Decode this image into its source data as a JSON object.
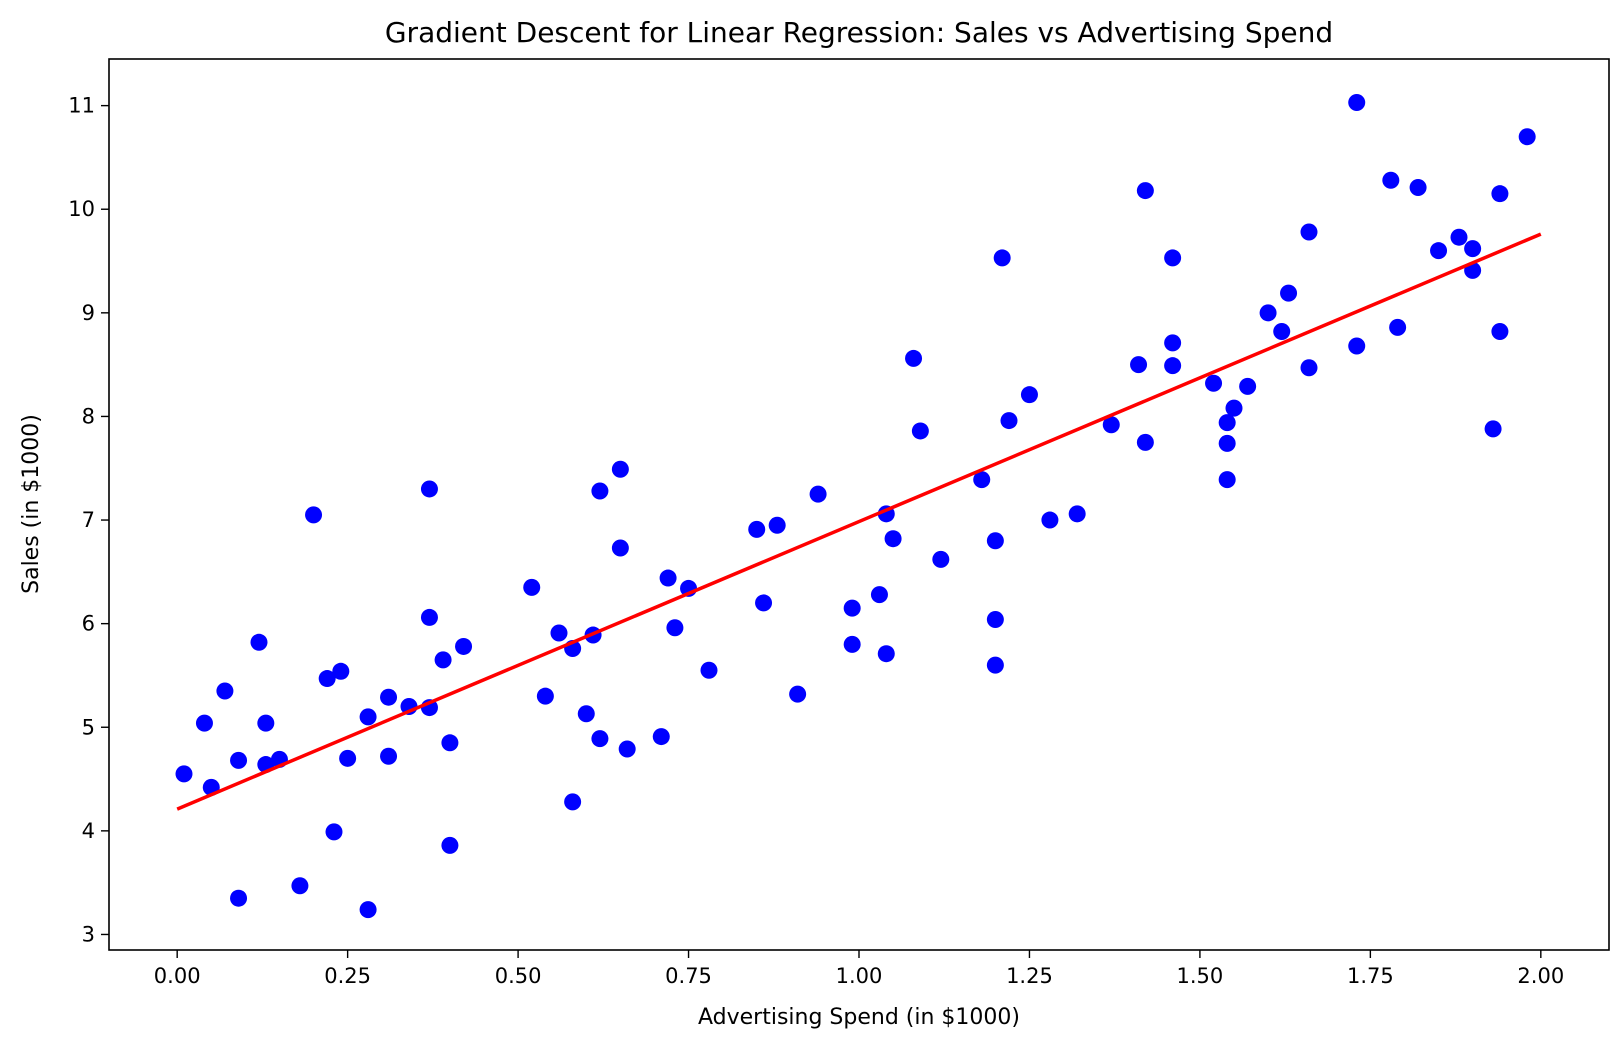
{
  "chart_data": {
    "type": "scatter",
    "title": "Gradient Descent for Linear Regression: Sales vs Advertising Spend",
    "xlabel": "Advertising Spend (in $1000)",
    "ylabel": "Sales (in $1000)",
    "xlim": [
      -0.1,
      2.1
    ],
    "ylim": [
      2.85,
      11.45
    ],
    "xticks": [
      "0.00",
      "0.25",
      "0.50",
      "0.75",
      "1.00",
      "1.25",
      "1.50",
      "1.75",
      "2.00"
    ],
    "yticks": [
      "3",
      "4",
      "5",
      "6",
      "7",
      "8",
      "9",
      "10",
      "11"
    ],
    "grid": false,
    "colors": {
      "points": "#0000ff",
      "line": "#ff0000"
    },
    "points": [
      [
        0.01,
        4.55
      ],
      [
        0.04,
        5.04
      ],
      [
        0.05,
        4.42
      ],
      [
        0.07,
        5.35
      ],
      [
        0.09,
        4.68
      ],
      [
        0.09,
        3.35
      ],
      [
        0.12,
        5.82
      ],
      [
        0.13,
        5.04
      ],
      [
        0.13,
        4.64
      ],
      [
        0.15,
        4.69
      ],
      [
        0.18,
        3.47
      ],
      [
        0.2,
        7.05
      ],
      [
        0.22,
        5.47
      ],
      [
        0.23,
        3.99
      ],
      [
        0.24,
        5.54
      ],
      [
        0.25,
        4.7
      ],
      [
        0.28,
        5.1
      ],
      [
        0.28,
        3.24
      ],
      [
        0.31,
        5.29
      ],
      [
        0.31,
        4.72
      ],
      [
        0.34,
        5.2
      ],
      [
        0.37,
        5.19
      ],
      [
        0.37,
        6.06
      ],
      [
        0.37,
        7.3
      ],
      [
        0.39,
        5.65
      ],
      [
        0.4,
        4.85
      ],
      [
        0.4,
        3.86
      ],
      [
        0.42,
        5.78
      ],
      [
        0.52,
        6.35
      ],
      [
        0.54,
        5.3
      ],
      [
        0.56,
        5.91
      ],
      [
        0.58,
        5.76
      ],
      [
        0.58,
        4.28
      ],
      [
        0.6,
        5.13
      ],
      [
        0.61,
        5.89
      ],
      [
        0.62,
        4.89
      ],
      [
        0.62,
        7.28
      ],
      [
        0.65,
        6.73
      ],
      [
        0.65,
        7.49
      ],
      [
        0.66,
        4.79
      ],
      [
        0.71,
        4.91
      ],
      [
        0.72,
        6.44
      ],
      [
        0.73,
        5.96
      ],
      [
        0.75,
        6.34
      ],
      [
        0.78,
        5.55
      ],
      [
        0.85,
        6.91
      ],
      [
        0.86,
        6.2
      ],
      [
        0.88,
        6.95
      ],
      [
        0.91,
        5.32
      ],
      [
        0.94,
        7.25
      ],
      [
        0.99,
        6.15
      ],
      [
        0.99,
        5.8
      ],
      [
        1.03,
        6.28
      ],
      [
        1.04,
        5.71
      ],
      [
        1.04,
        7.06
      ],
      [
        1.05,
        6.82
      ],
      [
        1.08,
        8.56
      ],
      [
        1.09,
        7.86
      ],
      [
        1.12,
        6.62
      ],
      [
        1.18,
        7.39
      ],
      [
        1.2,
        6.04
      ],
      [
        1.2,
        5.6
      ],
      [
        1.2,
        6.8
      ],
      [
        1.21,
        9.53
      ],
      [
        1.22,
        7.96
      ],
      [
        1.25,
        8.21
      ],
      [
        1.28,
        7.0
      ],
      [
        1.32,
        7.06
      ],
      [
        1.37,
        7.92
      ],
      [
        1.41,
        8.5
      ],
      [
        1.42,
        7.75
      ],
      [
        1.42,
        10.18
      ],
      [
        1.46,
        8.71
      ],
      [
        1.46,
        9.53
      ],
      [
        1.46,
        8.49
      ],
      [
        1.52,
        8.32
      ],
      [
        1.54,
        7.94
      ],
      [
        1.54,
        7.74
      ],
      [
        1.54,
        7.39
      ],
      [
        1.55,
        8.08
      ],
      [
        1.57,
        8.29
      ],
      [
        1.6,
        9.0
      ],
      [
        1.62,
        8.82
      ],
      [
        1.63,
        9.19
      ],
      [
        1.66,
        9.78
      ],
      [
        1.66,
        8.47
      ],
      [
        1.73,
        11.03
      ],
      [
        1.73,
        8.68
      ],
      [
        1.78,
        10.28
      ],
      [
        1.79,
        8.86
      ],
      [
        1.82,
        10.21
      ],
      [
        1.85,
        9.6
      ],
      [
        1.88,
        9.73
      ],
      [
        1.9,
        9.62
      ],
      [
        1.9,
        9.41
      ],
      [
        1.93,
        7.88
      ],
      [
        1.94,
        8.82
      ],
      [
        1.94,
        10.15
      ],
      [
        1.98,
        10.7
      ]
    ],
    "regression_line": {
      "x": [
        0,
        2
      ],
      "y": [
        4.21,
        9.76
      ]
    }
  }
}
